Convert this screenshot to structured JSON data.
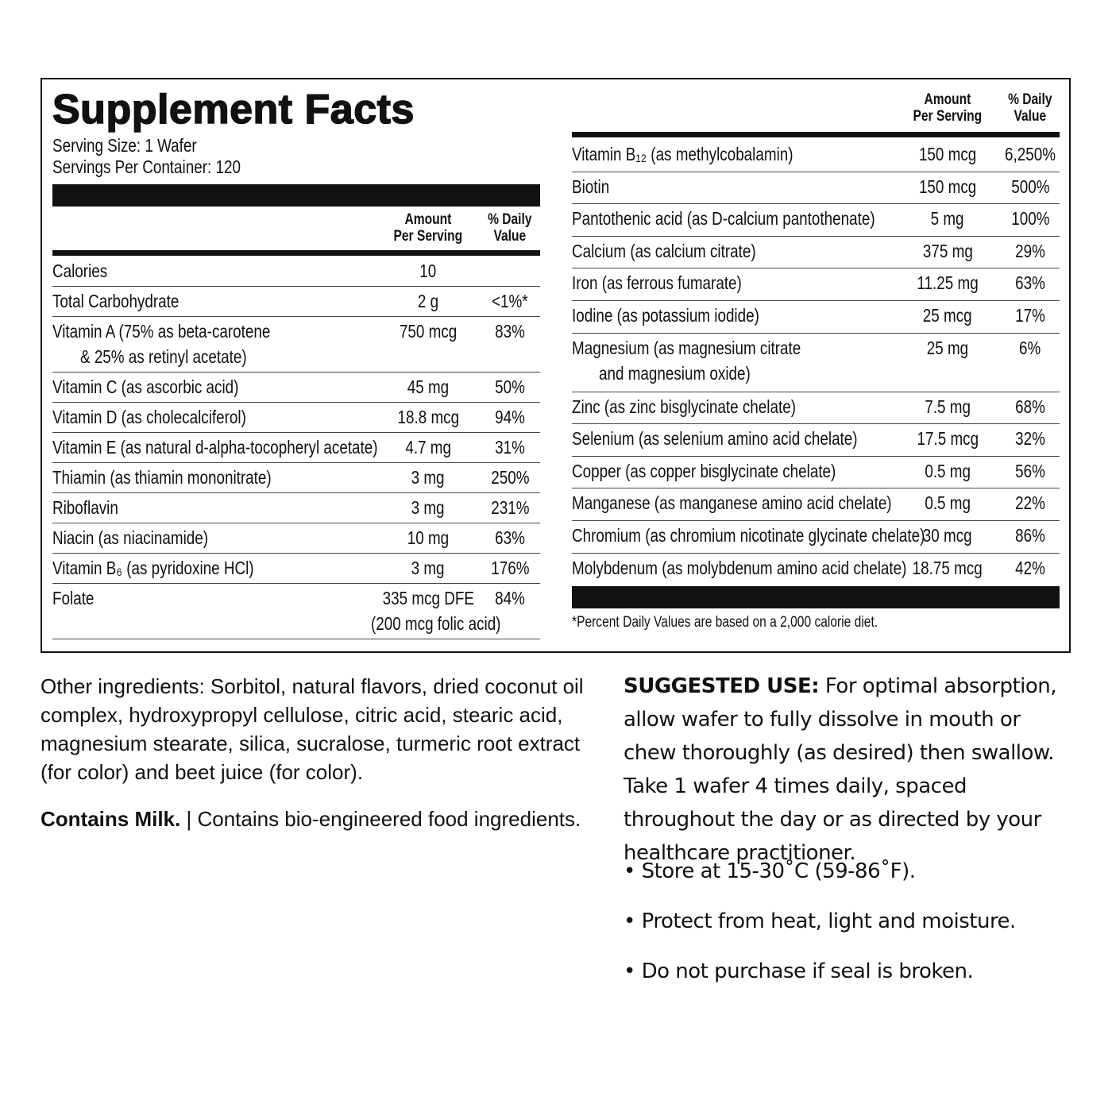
{
  "title": "Supplement Facts",
  "serving_size": "Serving Size: 1 Wafer",
  "servings_per_container": "Servings Per Container: 120",
  "left_table": {
    "headers": [
      [
        "Amount",
        "Per Serving"
      ],
      [
        "% Daily",
        "Value"
      ]
    ],
    "rows": [
      [
        "Calories",
        "10",
        null
      ],
      [
        "Total Carbohydrate",
        "2 g",
        "<1%*"
      ],
      [
        [
          "Vitamin A (75% as beta-carotene",
          "& 25% as retinyl acetate)"
        ],
        "750 mcg",
        "83%"
      ],
      [
        "Vitamin C (as ascorbic acid)",
        "45 mg",
        "50%"
      ],
      [
        "Vitamin D (as cholecalciferol)",
        "18.8 mcg",
        "94%"
      ],
      [
        "Vitamin E (as natural d-alpha-tocopheryl acetate)",
        "4.7 mg",
        "31%"
      ],
      [
        "Thiamin (as thiamin mononitrate)",
        "3 mg",
        "250%"
      ],
      [
        "Riboflavin",
        "3 mg",
        "231%"
      ],
      [
        "Niacin (as niacinamide)",
        "10 mg",
        "63%"
      ],
      [
        "Vitamin B₆ (as pyridoxine HCl)",
        "3 mg",
        "176%"
      ],
      [
        "Folate",
        [
          "335 mcg DFE",
          "(200 mcg folic acid)"
        ],
        "84%"
      ]
    ]
  },
  "right_table": {
    "headers": [
      [
        "Amount",
        "Per Serving"
      ],
      [
        "% Daily",
        "Value"
      ]
    ],
    "rows": [
      [
        "Vitamin B₁₂ (as methylcobalamin)",
        "150 mcg",
        "6,250%"
      ],
      [
        "Biotin",
        "150 mcg",
        "500%"
      ],
      [
        "Pantothenic acid (as D-calcium pantothenate)",
        "5 mg",
        "100%"
      ],
      [
        "Calcium (as calcium citrate)",
        "375 mg",
        "29%"
      ],
      [
        "Iron (as ferrous fumarate)",
        "11.25 mg",
        "63%"
      ],
      [
        "Iodine (as potassium iodide)",
        "25 mcg",
        "17%"
      ],
      [
        [
          "Magnesium (as magnesium citrate",
          "and magnesium oxide)"
        ],
        "25 mg",
        "6%"
      ],
      [
        "Zinc (as zinc bisglycinate chelate)",
        "7.5 mg",
        "68%"
      ],
      [
        "Selenium (as selenium amino acid chelate)",
        "17.5 mcg",
        "32%"
      ],
      [
        "Copper (as copper bisglycinate chelate)",
        "0.5 mg",
        "56%"
      ],
      [
        "Manganese (as manganese amino acid chelate)",
        "0.5 mg",
        "22%"
      ],
      [
        "Chromium (as chromium nicotinate glycinate chelate)",
        "30 mcg",
        "86%"
      ],
      [
        "Molybdenum (as molybdenum amino acid chelate)",
        "18.75 mcg",
        "42%"
      ]
    ]
  },
  "footnote": "*Percent Daily Values are based on a 2,000 calorie diet.",
  "other_ingredients": "Other ingredients: Sorbitol, natural flavors, dried coconut oil complex, hydroxypropyl cellulose, citric acid, stearic acid, magnesium stearate, silica, sucralose, turmeric root extract (for color) and beet juice (for color).",
  "contains_bold": "Contains Milk.",
  "contains_rest": " | Contains bio-engineered food ingredients.",
  "suggested_use": {
    "label": "SUGGESTED USE:",
    "text": " For optimal absorption, allow wafer to fully dissolve in mouth or chew thoroughly (as desired) then swallow. Take 1 wafer 4 times daily, spaced throughout the day or as directed by your healthcare practitioner."
  },
  "bullets": [
    "• Store at 15-30˚C (59-86˚F).",
    "• Protect from heat, light and moisture.",
    "• Do not purchase if seal is broken."
  ]
}
